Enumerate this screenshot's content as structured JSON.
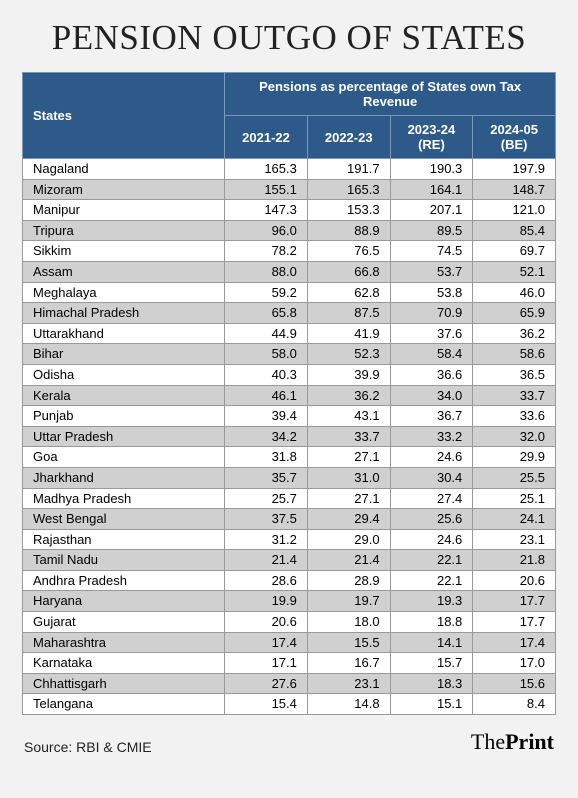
{
  "title": "PENSION OUTGO OF STATES",
  "table": {
    "type": "table",
    "super_header": "Pensions as percentage of States own Tax Revenue",
    "row_header": "States",
    "columns": [
      "2021-22",
      "2022-23",
      "2023-24 (RE)",
      "2024-05 (BE)"
    ],
    "header_bg": "#2e5a8a",
    "header_fg": "#ffffff",
    "row_odd_bg": "#ffffff",
    "row_even_bg": "#d0d0d0",
    "border_color": "#999999",
    "font_size": 13,
    "rows": [
      {
        "state": "Nagaland",
        "values": [
          "165.3",
          "191.7",
          "190.3",
          "197.9"
        ]
      },
      {
        "state": "Mizoram",
        "values": [
          "155.1",
          "165.3",
          "164.1",
          "148.7"
        ]
      },
      {
        "state": "Manipur",
        "values": [
          "147.3",
          "153.3",
          "207.1",
          "121.0"
        ]
      },
      {
        "state": "Tripura",
        "values": [
          "96.0",
          "88.9",
          "89.5",
          "85.4"
        ]
      },
      {
        "state": "Sikkim",
        "values": [
          "78.2",
          "76.5",
          "74.5",
          "69.7"
        ]
      },
      {
        "state": "Assam",
        "values": [
          "88.0",
          "66.8",
          "53.7",
          "52.1"
        ]
      },
      {
        "state": "Meghalaya",
        "values": [
          "59.2",
          "62.8",
          "53.8",
          "46.0"
        ]
      },
      {
        "state": "Himachal Pradesh",
        "values": [
          "65.8",
          "87.5",
          "70.9",
          "65.9"
        ]
      },
      {
        "state": "Uttarakhand",
        "values": [
          "44.9",
          "41.9",
          "37.6",
          "36.2"
        ]
      },
      {
        "state": "Bihar",
        "values": [
          "58.0",
          "52.3",
          "58.4",
          "58.6"
        ]
      },
      {
        "state": "Odisha",
        "values": [
          "40.3",
          "39.9",
          "36.6",
          "36.5"
        ]
      },
      {
        "state": "Kerala",
        "values": [
          "46.1",
          "36.2",
          "34.0",
          "33.7"
        ]
      },
      {
        "state": "Punjab",
        "values": [
          "39.4",
          "43.1",
          "36.7",
          "33.6"
        ]
      },
      {
        "state": "Uttar Pradesh",
        "values": [
          "34.2",
          "33.7",
          "33.2",
          "32.0"
        ]
      },
      {
        "state": "Goa",
        "values": [
          "31.8",
          "27.1",
          "24.6",
          "29.9"
        ]
      },
      {
        "state": "Jharkhand",
        "values": [
          "35.7",
          "31.0",
          "30.4",
          "25.5"
        ]
      },
      {
        "state": "Madhya Pradesh",
        "values": [
          "25.7",
          "27.1",
          "27.4",
          "25.1"
        ]
      },
      {
        "state": "West Bengal",
        "values": [
          "37.5",
          "29.4",
          "25.6",
          "24.1"
        ]
      },
      {
        "state": "Rajasthan",
        "values": [
          "31.2",
          "29.0",
          "24.6",
          "23.1"
        ]
      },
      {
        "state": "Tamil Nadu",
        "values": [
          "21.4",
          "21.4",
          "22.1",
          "21.8"
        ]
      },
      {
        "state": "Andhra Pradesh",
        "values": [
          "28.6",
          "28.9",
          "22.1",
          "20.6"
        ]
      },
      {
        "state": "Haryana",
        "values": [
          "19.9",
          "19.7",
          "19.3",
          "17.7"
        ]
      },
      {
        "state": "Gujarat",
        "values": [
          "20.6",
          "18.0",
          "18.8",
          "17.7"
        ]
      },
      {
        "state": "Maharashtra",
        "values": [
          "17.4",
          "15.5",
          "14.1",
          "17.4"
        ]
      },
      {
        "state": "Karnataka",
        "values": [
          "17.1",
          "16.7",
          "15.7",
          "17.0"
        ]
      },
      {
        "state": "Chhattisgarh",
        "values": [
          "27.6",
          "23.1",
          "18.3",
          "15.6"
        ]
      },
      {
        "state": "Telangana",
        "values": [
          "15.4",
          "14.8",
          "15.1",
          "8.4"
        ]
      }
    ]
  },
  "source": "Source: RBI & CMIE",
  "brand": {
    "prefix": "The",
    "name": "Print"
  },
  "page_bg": "#f2f2f2"
}
